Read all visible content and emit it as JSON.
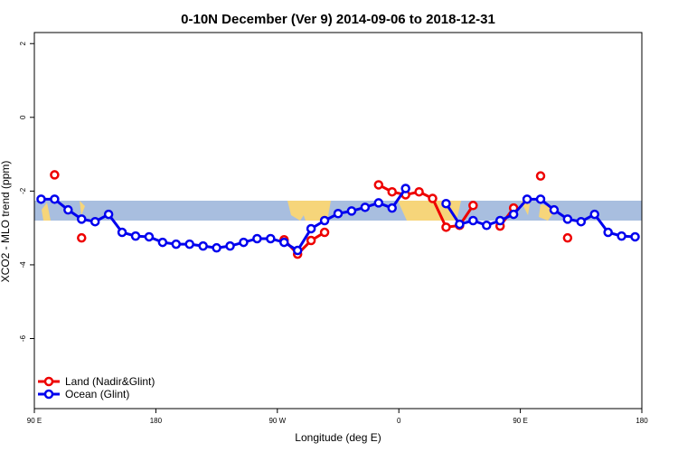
{
  "chart_data": {
    "type": "line",
    "title": "0-10N December (Ver 9)   2014-09-06 to 2018-12-31",
    "xlabel": "Longitude (deg E)",
    "ylabel": "XCO2 - MLO trend (ppm)",
    "x": [
      95,
      105,
      115,
      125,
      135,
      145,
      155,
      165,
      175,
      185,
      195,
      205,
      215,
      225,
      235,
      245,
      255,
      265,
      275,
      285,
      295,
      305,
      315,
      325,
      335,
      345,
      355,
      365,
      375,
      385,
      395,
      405,
      415,
      425,
      435,
      445,
      455,
      465,
      475,
      485,
      495,
      505,
      515,
      525,
      535
    ],
    "series": [
      {
        "name": "Land (Nadir&Glint)",
        "color": "#ee0000",
        "values": [
          null,
          -1.56,
          null,
          -3.27,
          null,
          null,
          null,
          null,
          null,
          null,
          null,
          null,
          null,
          null,
          null,
          null,
          null,
          null,
          -3.32,
          -3.71,
          -3.34,
          -3.12,
          null,
          null,
          null,
          -1.83,
          -2.02,
          -2.1,
          -2.02,
          -2.2,
          -2.98,
          -2.93,
          -2.39,
          null,
          -2.95,
          -2.46,
          null,
          -1.59,
          null,
          -3.27,
          null,
          null,
          null,
          null,
          null
        ]
      },
      {
        "name": "Ocean (Glint)",
        "color": "#0000ee",
        "values": [
          -2.22,
          -2.22,
          -2.51,
          -2.76,
          -2.83,
          -2.63,
          -3.12,
          -3.22,
          -3.24,
          -3.39,
          -3.44,
          -3.44,
          -3.49,
          -3.54,
          -3.49,
          -3.39,
          -3.29,
          -3.29,
          -3.39,
          -3.61,
          -3.02,
          -2.8,
          -2.61,
          -2.54,
          -2.44,
          -2.32,
          -2.46,
          -1.93,
          null,
          null,
          -2.34,
          -2.9,
          -2.8,
          -2.93,
          -2.8,
          -2.63,
          -2.22,
          -2.22,
          -2.51,
          -2.76,
          -2.83,
          -2.63,
          -3.12,
          -3.22,
          -3.24
        ]
      }
    ],
    "xlim": [
      90,
      540
    ],
    "xticks": [
      {
        "value": 90,
        "label": "90 E"
      },
      180,
      {
        "value": 270,
        "label": "90 W"
      },
      {
        "value": 360,
        "label": "0"
      },
      {
        "value": 450,
        "label": "90 E"
      },
      {
        "value": 540,
        "label": "180"
      }
    ],
    "ylim": [
      -7.9,
      2.3
    ],
    "yticks": [
      2,
      0,
      -2,
      -4,
      -6
    ],
    "legend": "bottom-left"
  }
}
